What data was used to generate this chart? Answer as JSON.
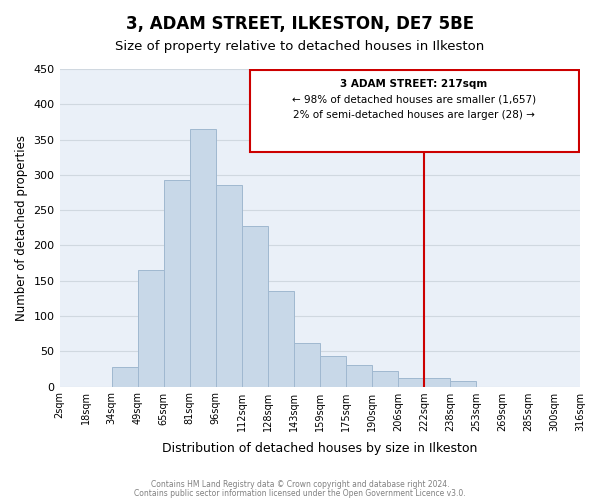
{
  "title": "3, ADAM STREET, ILKESTON, DE7 5BE",
  "subtitle": "Size of property relative to detached houses in Ilkeston",
  "xlabel": "Distribution of detached houses by size in Ilkeston",
  "ylabel": "Number of detached properties",
  "bar_color": "#c8d8e8",
  "bar_edge_color": "#a0b8d0",
  "background_color": "#eaf0f8",
  "grid_color": "#d0d8e0",
  "tick_labels": [
    "2sqm",
    "18sqm",
    "34sqm",
    "49sqm",
    "65sqm",
    "81sqm",
    "96sqm",
    "112sqm",
    "128sqm",
    "143sqm",
    "159sqm",
    "175sqm",
    "190sqm",
    "206sqm",
    "222sqm",
    "238sqm",
    "253sqm",
    "269sqm",
    "285sqm",
    "300sqm",
    "316sqm"
  ],
  "bar_heights": [
    0,
    0,
    28,
    165,
    292,
    365,
    285,
    228,
    135,
    62,
    43,
    30,
    22,
    12,
    12,
    8,
    0,
    0,
    0,
    0
  ],
  "ylim": [
    0,
    450
  ],
  "yticks": [
    0,
    50,
    100,
    150,
    200,
    250,
    300,
    350,
    400,
    450
  ],
  "vline_pos": 14,
  "vline_color": "#cc0000",
  "annotation_title": "3 ADAM STREET: 217sqm",
  "annotation_line1": "← 98% of detached houses are smaller (1,657)",
  "annotation_line2": "2% of semi-detached houses are larger (28) →",
  "annotation_box_color": "#cc0000",
  "footer_line1": "Contains HM Land Registry data © Crown copyright and database right 2024.",
  "footer_line2": "Contains public sector information licensed under the Open Government Licence v3.0.",
  "figsize": [
    6.0,
    5.0
  ],
  "dpi": 100
}
